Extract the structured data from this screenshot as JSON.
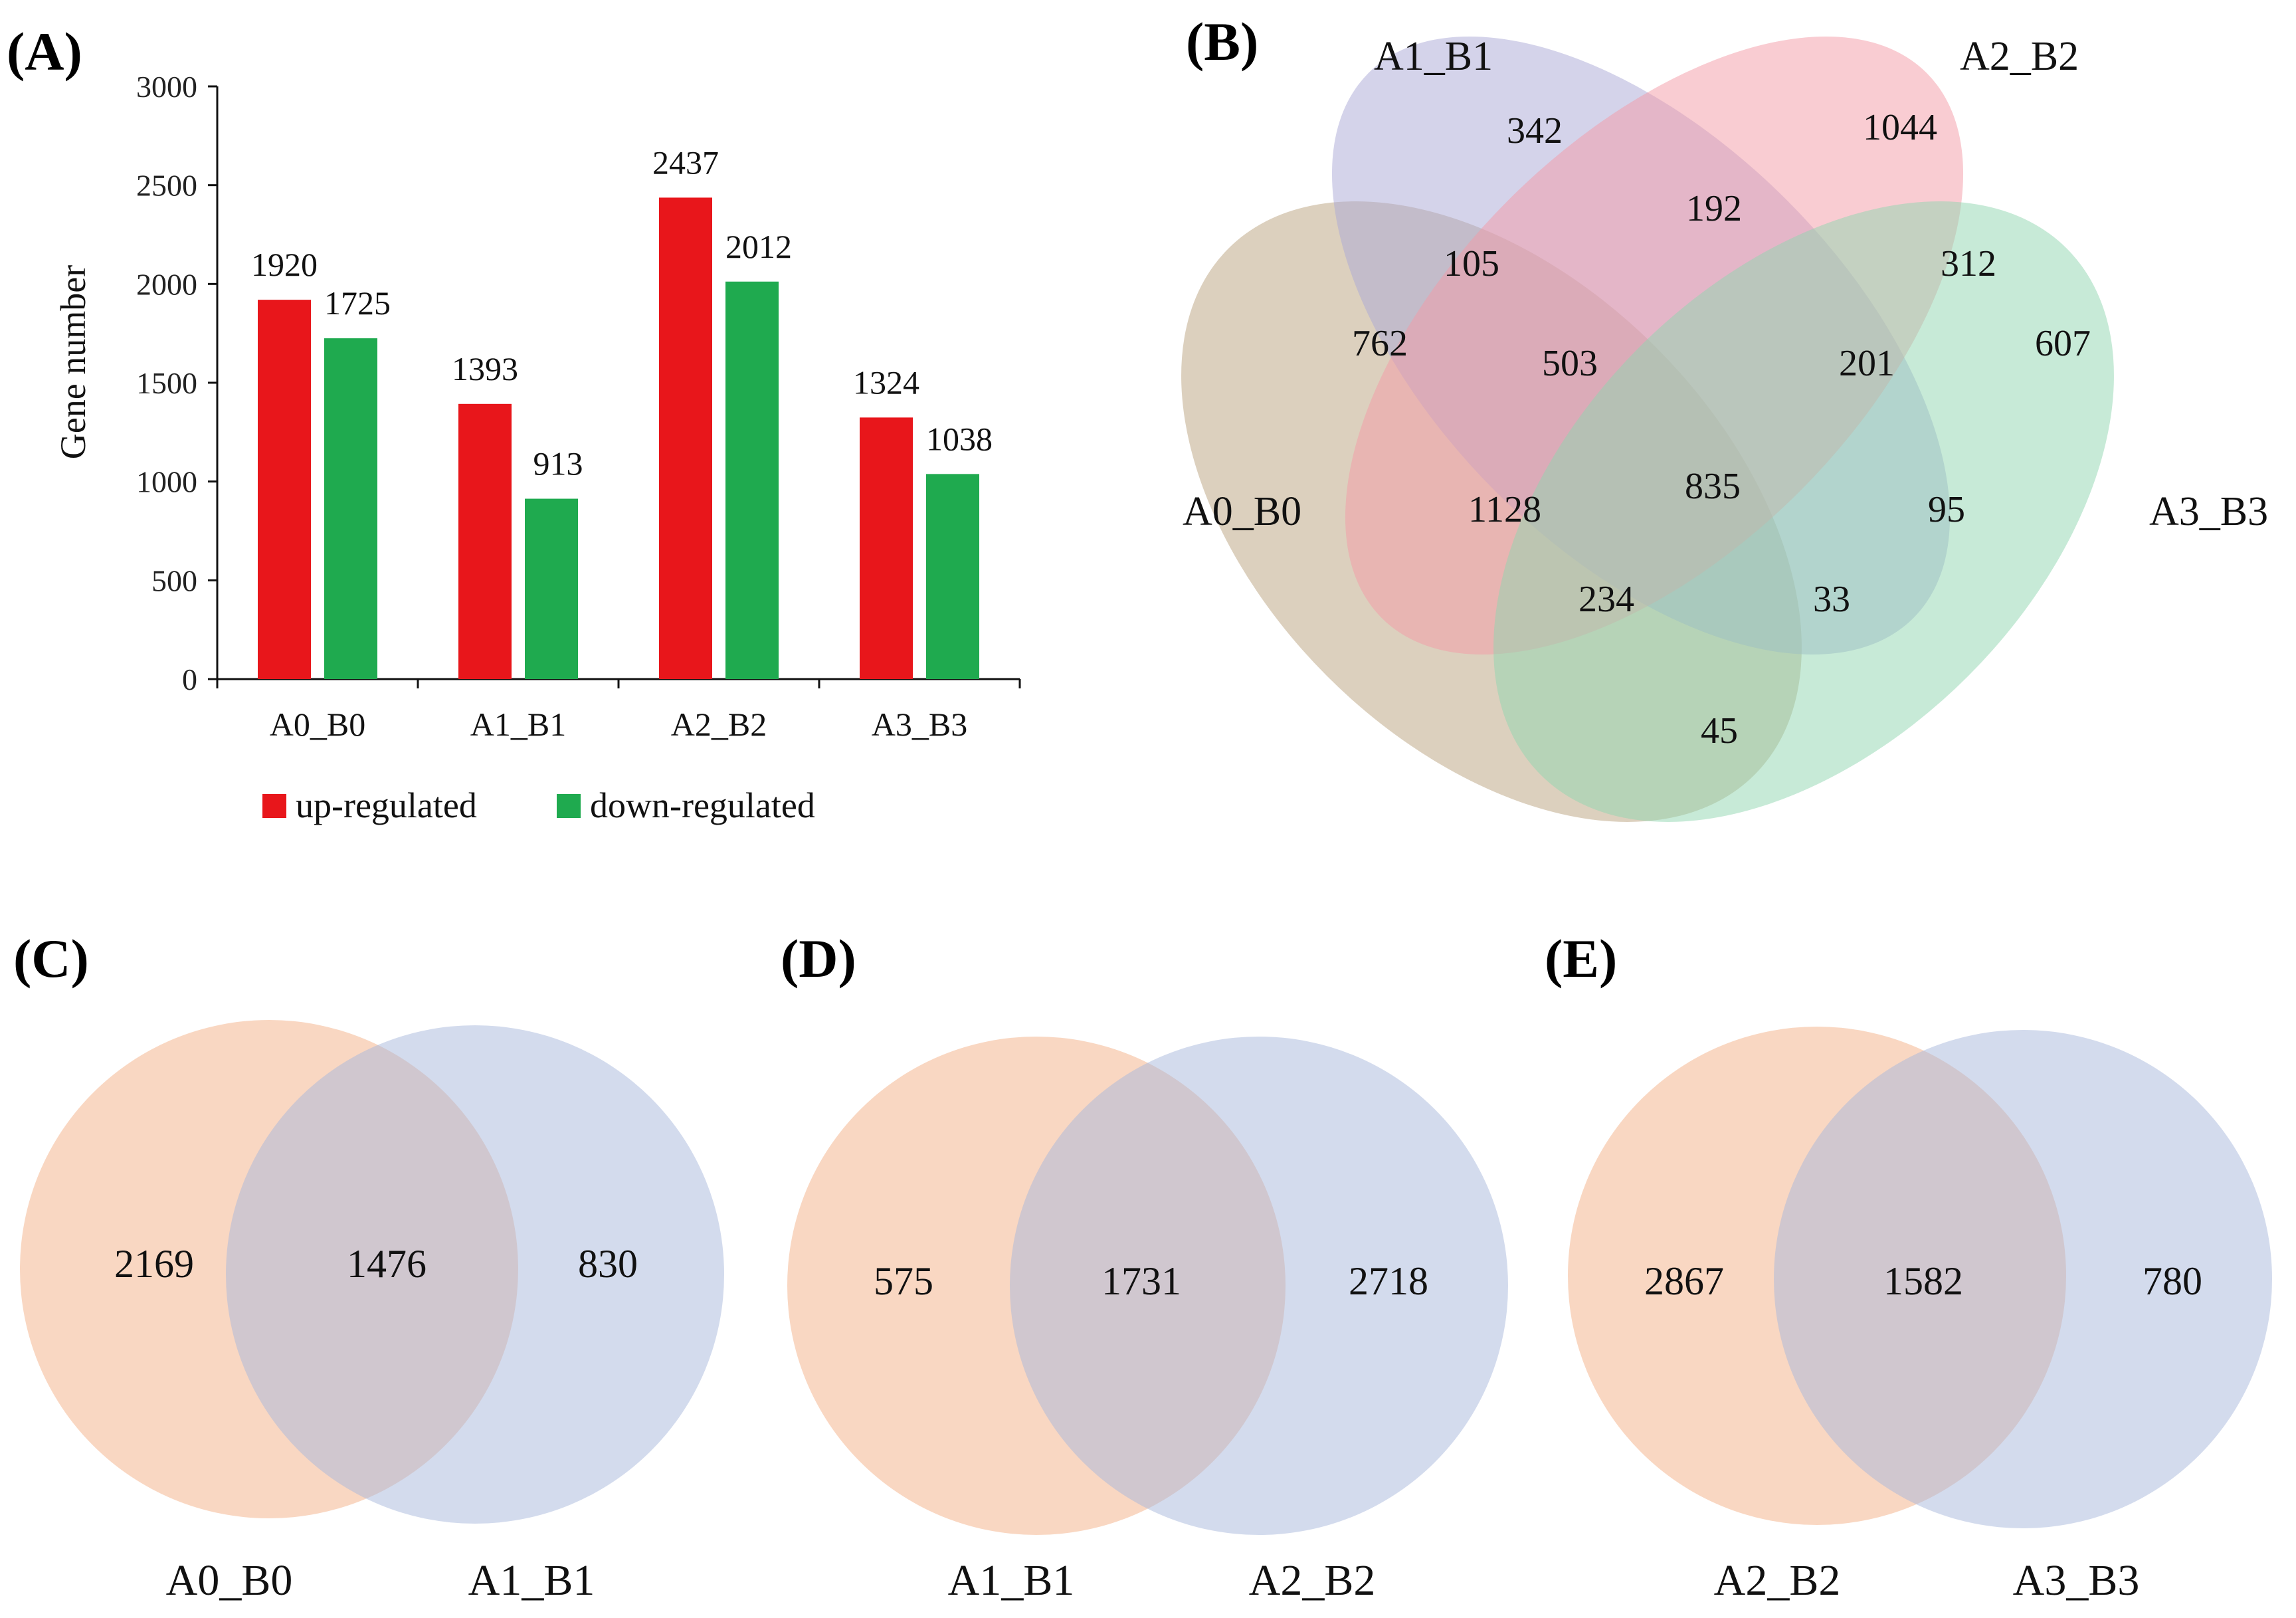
{
  "panels": {
    "a": "(A)",
    "b": "(B)",
    "c": "(C)",
    "d": "(D)",
    "e": "(E)"
  },
  "colors": {
    "up": "#e8161b",
    "down": "#1faa4f",
    "venn_a0": "#b9a27e",
    "venn_a1": "#a9a8d6",
    "venn_a2": "#f39aa6",
    "venn_a3": "#8fd6b0",
    "venn2_left": "#f6c2a2",
    "venn2_right": "#a8b8dc"
  },
  "chart_data": [
    {
      "type": "bar",
      "title": "",
      "xlabel": "",
      "ylabel": "Gene number",
      "ylim": [
        0,
        3000
      ],
      "yticks": [
        "0",
        "500",
        "1000",
        "1500",
        "2000",
        "2500",
        "3000"
      ],
      "categories": [
        "A0_B0",
        "A1_B1",
        "A2_B2",
        "A3_B3"
      ],
      "series": [
        {
          "name": "up-regulated",
          "values": [
            1920,
            1393,
            2437,
            1324
          ]
        },
        {
          "name": "down-regulated",
          "values": [
            1725,
            913,
            2012,
            1038
          ]
        }
      ],
      "data_labels": {
        "up": [
          "1920",
          "1393",
          "2437",
          "1324"
        ],
        "down": [
          "1725",
          "913",
          "2012",
          "1038"
        ]
      },
      "legend_position": "bottom"
    },
    {
      "type": "venn",
      "sets": [
        "A0_B0",
        "A1_B1",
        "A2_B2",
        "A3_B3"
      ],
      "regions": {
        "only_A1_B1": "342",
        "only_A2_B2": "1044",
        "A1_B1&A2_B2": "192",
        "A0_B0&A1_B1": "105",
        "A2_B2&A3_B3": "312",
        "only_A0_B0": "762",
        "only_A3_B3": "607",
        "A0_B0&A1_B1&A2_B2": "503",
        "A1_B1&A2_B2&A3_B3": "201",
        "all_four": "835",
        "A0_B0&A2_B2": "1128",
        "A1_B1&A3_B3": "95",
        "A0_B0&A2_B2&A3_B3": "234",
        "A0_B0&A1_B1&A3_B3": "33",
        "A0_B0&A3_B3": "45"
      }
    },
    {
      "type": "venn",
      "sets": [
        "A0_B0",
        "A1_B1"
      ],
      "left_only": "2169",
      "intersection": "1476",
      "right_only": "830"
    },
    {
      "type": "venn",
      "sets": [
        "A1_B1",
        "A2_B2"
      ],
      "left_only": "575",
      "intersection": "1731",
      "right_only": "2718"
    },
    {
      "type": "venn",
      "sets": [
        "A2_B2",
        "A3_B3"
      ],
      "left_only": "2867",
      "intersection": "1582",
      "right_only": "780"
    }
  ]
}
